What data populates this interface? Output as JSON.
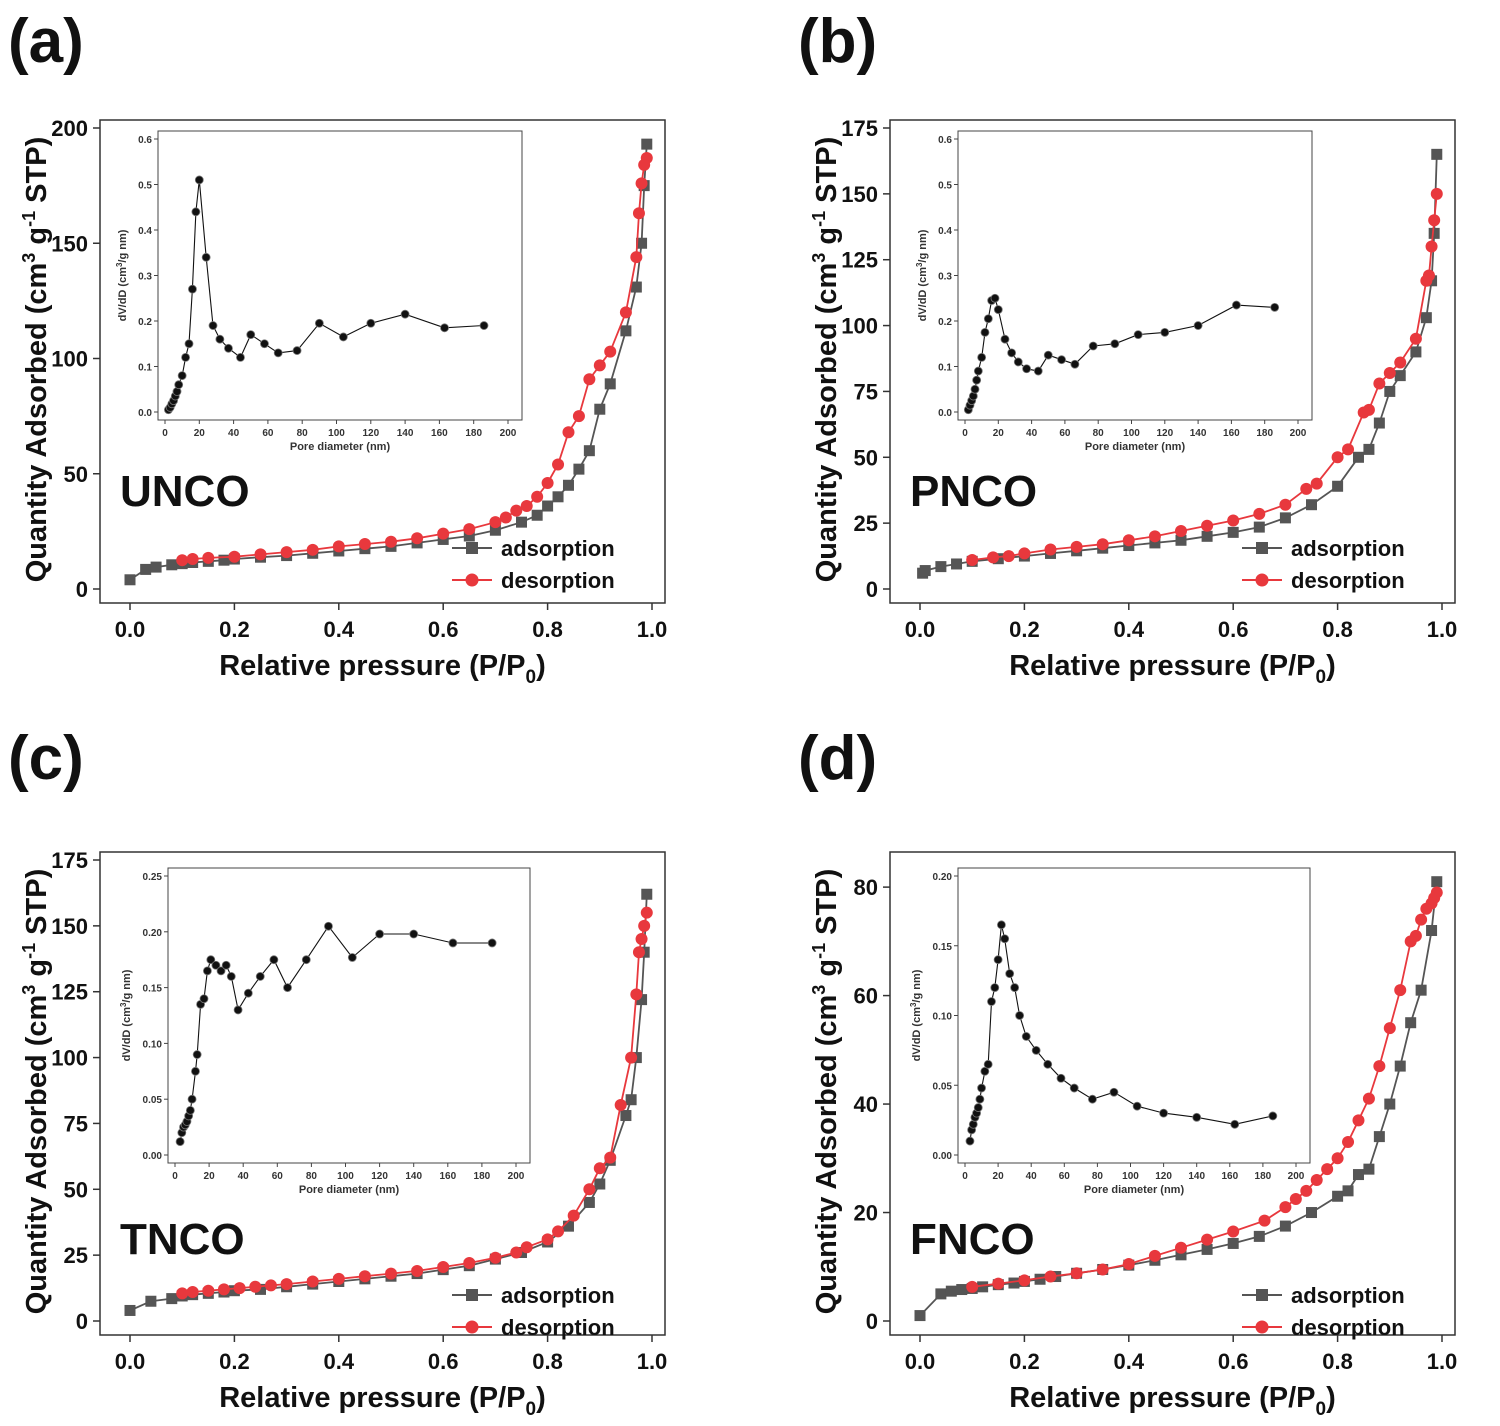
{
  "colors": {
    "adsorption": "#555555",
    "desorption": "#e8383d",
    "inset": "#111111",
    "axis": "#333333"
  },
  "common": {
    "xlabel": "Relative pressure (P/P",
    "xlabel_sub": "0",
    "xlabel_close": ")",
    "ylabel": "Quantity Adsorbed (cm",
    "ylabel_sup1": "3",
    "ylabel_mid": " g",
    "ylabel_sup2": "-1",
    "ylabel_end": " STP)",
    "inset_xlabel": "Pore diameter (nm)",
    "inset_ylabel": "dV/dD (cm",
    "inset_ylabel_sup": "3",
    "inset_ylabel_end": "/g nm)",
    "legend": [
      "adsorption",
      "desorption"
    ]
  },
  "chart_data": [
    {
      "type": "line",
      "panel": "(a)",
      "sample": "UNCO",
      "xlim": [
        0,
        1.0
      ],
      "ylim": [
        0,
        200
      ],
      "xticks": [
        "0.0",
        "0.2",
        "0.4",
        "0.6",
        "0.8",
        "1.0"
      ],
      "yticks": [
        "0",
        "50",
        "100",
        "150",
        "200"
      ],
      "legend_position": "bottom-right",
      "series": [
        {
          "name": "adsorption",
          "marker": "square",
          "x": [
            0.0,
            0.03,
            0.05,
            0.08,
            0.1,
            0.12,
            0.15,
            0.18,
            0.2,
            0.25,
            0.3,
            0.35,
            0.4,
            0.45,
            0.5,
            0.55,
            0.6,
            0.65,
            0.7,
            0.75,
            0.78,
            0.8,
            0.82,
            0.84,
            0.86,
            0.88,
            0.9,
            0.92,
            0.95,
            0.97,
            0.98,
            0.985,
            0.99
          ],
          "y": [
            4,
            8.5,
            9.5,
            10.5,
            11,
            11.5,
            12,
            12.5,
            13,
            13.8,
            14.5,
            15.5,
            16.5,
            17.5,
            18.5,
            20,
            21.5,
            23,
            25.5,
            29,
            32,
            36,
            40,
            45,
            52,
            60,
            78,
            89,
            112,
            131,
            150,
            175,
            193
          ]
        },
        {
          "name": "desorption",
          "marker": "circle",
          "x": [
            0.99,
            0.985,
            0.98,
            0.975,
            0.97,
            0.95,
            0.92,
            0.9,
            0.88,
            0.86,
            0.84,
            0.82,
            0.8,
            0.78,
            0.76,
            0.74,
            0.72,
            0.7,
            0.65,
            0.6,
            0.55,
            0.5,
            0.45,
            0.4,
            0.35,
            0.3,
            0.25,
            0.2,
            0.15,
            0.12,
            0.1
          ],
          "y": [
            187,
            184,
            176,
            163,
            144,
            120,
            103,
            97,
            91,
            75,
            68,
            54,
            46,
            40,
            36,
            34,
            31,
            29,
            26,
            24,
            22,
            20.5,
            19.5,
            18.5,
            17,
            16,
            15,
            14,
            13.5,
            13,
            12.5
          ]
        }
      ],
      "inset": {
        "xlim": [
          0,
          200
        ],
        "ylim": [
          0,
          0.6
        ],
        "xticks": [
          "0",
          "20",
          "40",
          "60",
          "80",
          "100",
          "120",
          "140",
          "160",
          "180",
          "200"
        ],
        "yticks": [
          "0.0",
          "0.1",
          "0.2",
          "0.3",
          "0.4",
          "0.5",
          "0.6"
        ],
        "x": [
          2,
          3,
          4,
          5,
          6,
          7,
          8,
          10,
          12,
          14,
          16,
          18,
          20,
          24,
          28,
          32,
          37,
          44,
          50,
          58,
          66,
          77,
          90,
          104,
          120,
          140,
          163,
          186
        ],
        "y": [
          0.005,
          0.01,
          0.018,
          0.025,
          0.035,
          0.045,
          0.06,
          0.08,
          0.12,
          0.15,
          0.27,
          0.44,
          0.51,
          0.34,
          0.19,
          0.16,
          0.14,
          0.12,
          0.17,
          0.15,
          0.13,
          0.135,
          0.195,
          0.165,
          0.195,
          0.215,
          0.185,
          0.19
        ]
      }
    },
    {
      "type": "line",
      "panel": "(b)",
      "sample": "PNCO",
      "xlim": [
        0,
        1.0
      ],
      "ylim": [
        0,
        175
      ],
      "xticks": [
        "0.0",
        "0.2",
        "0.4",
        "0.6",
        "0.8",
        "1.0"
      ],
      "yticks": [
        "0",
        "25",
        "50",
        "75",
        "100",
        "125",
        "150",
        "175"
      ],
      "legend_position": "bottom-right",
      "series": [
        {
          "name": "adsorption",
          "marker": "square",
          "x": [
            0.005,
            0.01,
            0.04,
            0.07,
            0.1,
            0.15,
            0.2,
            0.25,
            0.3,
            0.35,
            0.4,
            0.45,
            0.5,
            0.55,
            0.6,
            0.65,
            0.7,
            0.75,
            0.8,
            0.84,
            0.86,
            0.88,
            0.9,
            0.92,
            0.95,
            0.97,
            0.98,
            0.985,
            0.99
          ],
          "y": [
            6,
            7,
            8.5,
            9.5,
            10.5,
            11.5,
            12.5,
            13.5,
            14.5,
            15.5,
            16.5,
            17.5,
            18.5,
            20,
            21.5,
            23.5,
            27,
            32,
            39,
            50,
            53,
            63,
            75,
            81,
            90,
            103,
            117,
            135,
            165
          ]
        },
        {
          "name": "desorption",
          "marker": "circle",
          "x": [
            0.99,
            0.985,
            0.98,
            0.975,
            0.97,
            0.95,
            0.92,
            0.9,
            0.88,
            0.86,
            0.85,
            0.82,
            0.8,
            0.76,
            0.74,
            0.7,
            0.65,
            0.6,
            0.55,
            0.5,
            0.45,
            0.4,
            0.35,
            0.3,
            0.25,
            0.2,
            0.17,
            0.14,
            0.1
          ],
          "y": [
            150,
            140,
            130,
            119,
            117,
            95,
            86,
            82,
            78,
            68,
            67,
            53,
            50,
            40,
            38,
            32,
            28.5,
            26,
            24,
            22,
            20,
            18.5,
            17,
            16,
            15,
            13.5,
            12.5,
            12,
            11
          ]
        }
      ],
      "inset": {
        "xlim": [
          0,
          200
        ],
        "ylim": [
          0,
          0.6
        ],
        "xticks": [
          "0",
          "20",
          "40",
          "60",
          "80",
          "100",
          "120",
          "140",
          "160",
          "180",
          "200"
        ],
        "yticks": [
          "0.0",
          "0.1",
          "0.2",
          "0.3",
          "0.4",
          "0.5",
          "0.6"
        ],
        "x": [
          2,
          3,
          4,
          5,
          6,
          7,
          8,
          10,
          12,
          14,
          16,
          18,
          20,
          24,
          28,
          32,
          37,
          44,
          50,
          58,
          66,
          77,
          90,
          104,
          120,
          140,
          163,
          186
        ],
        "y": [
          0.005,
          0.015,
          0.025,
          0.035,
          0.05,
          0.07,
          0.09,
          0.12,
          0.175,
          0.205,
          0.245,
          0.25,
          0.225,
          0.16,
          0.13,
          0.11,
          0.095,
          0.09,
          0.125,
          0.115,
          0.105,
          0.145,
          0.15,
          0.17,
          0.175,
          0.19,
          0.235,
          0.23
        ]
      }
    },
    {
      "type": "line",
      "panel": "(c)",
      "sample": "TNCO",
      "xlim": [
        0,
        1.0
      ],
      "ylim": [
        0,
        175
      ],
      "xticks": [
        "0.0",
        "0.2",
        "0.4",
        "0.6",
        "0.8",
        "1.0"
      ],
      "yticks": [
        "0",
        "25",
        "50",
        "75",
        "100",
        "125",
        "150",
        "175"
      ],
      "legend_position": "bottom-right",
      "series": [
        {
          "name": "adsorption",
          "marker": "square",
          "x": [
            0.0,
            0.04,
            0.08,
            0.1,
            0.12,
            0.15,
            0.18,
            0.2,
            0.25,
            0.3,
            0.35,
            0.4,
            0.45,
            0.5,
            0.55,
            0.6,
            0.65,
            0.7,
            0.75,
            0.8,
            0.84,
            0.88,
            0.9,
            0.92,
            0.95,
            0.96,
            0.97,
            0.98,
            0.985,
            0.99
          ],
          "y": [
            4,
            7.5,
            8.5,
            9.5,
            10,
            10.5,
            11,
            11.5,
            12,
            13,
            14,
            15,
            16,
            17,
            18,
            19.5,
            21,
            23.5,
            26,
            30,
            36,
            45,
            52,
            61,
            78,
            84,
            100,
            122,
            140,
            162
          ]
        },
        {
          "name": "desorption",
          "marker": "circle",
          "x": [
            0.99,
            0.985,
            0.98,
            0.975,
            0.97,
            0.96,
            0.94,
            0.92,
            0.9,
            0.88,
            0.85,
            0.82,
            0.8,
            0.76,
            0.74,
            0.7,
            0.65,
            0.6,
            0.55,
            0.5,
            0.45,
            0.4,
            0.35,
            0.3,
            0.27,
            0.24,
            0.21,
            0.18,
            0.15,
            0.12,
            0.1
          ],
          "y": [
            155,
            150,
            145,
            140,
            124,
            100,
            82,
            62,
            58,
            50,
            40,
            34,
            31,
            28,
            26,
            24,
            22,
            20.5,
            19,
            18,
            17,
            16,
            15,
            14,
            13.5,
            13,
            12.5,
            12,
            11.5,
            11,
            10.5
          ]
        }
      ],
      "inset": {
        "xlim": [
          0,
          200
        ],
        "ylim": [
          0,
          0.25
        ],
        "xticks": [
          "0",
          "20",
          "40",
          "60",
          "80",
          "100",
          "120",
          "140",
          "160",
          "180",
          "200"
        ],
        "yticks": [
          "0.00",
          "0.05",
          "0.10",
          "0.15",
          "0.20",
          "0.25"
        ],
        "x": [
          3,
          4,
          5,
          6,
          7,
          8,
          9,
          10,
          12,
          13,
          15,
          17,
          19,
          21,
          24,
          27,
          30,
          33,
          37,
          43,
          50,
          58,
          66,
          77,
          90,
          104,
          120,
          140,
          163,
          186
        ],
        "y": [
          0.012,
          0.02,
          0.025,
          0.027,
          0.03,
          0.035,
          0.04,
          0.05,
          0.075,
          0.09,
          0.135,
          0.14,
          0.165,
          0.175,
          0.17,
          0.165,
          0.17,
          0.16,
          0.13,
          0.145,
          0.16,
          0.175,
          0.15,
          0.175,
          0.205,
          0.177,
          0.198,
          0.198,
          0.19,
          0.19
        ]
      }
    },
    {
      "type": "line",
      "panel": "(d)",
      "sample": "FNCO",
      "xlim": [
        0,
        1.0
      ],
      "ylim": [
        0,
        85
      ],
      "xticks": [
        "0.0",
        "0.2",
        "0.4",
        "0.6",
        "0.8",
        "1.0"
      ],
      "yticks": [
        "0",
        "20",
        "40",
        "60",
        "80"
      ],
      "legend_position": "bottom-right",
      "series": [
        {
          "name": "adsorption",
          "marker": "square",
          "x": [
            0.0,
            0.04,
            0.06,
            0.08,
            0.1,
            0.12,
            0.15,
            0.18,
            0.2,
            0.23,
            0.26,
            0.3,
            0.35,
            0.4,
            0.45,
            0.5,
            0.55,
            0.6,
            0.65,
            0.7,
            0.75,
            0.8,
            0.82,
            0.84,
            0.86,
            0.88,
            0.9,
            0.92,
            0.94,
            0.96,
            0.98,
            0.99
          ],
          "y": [
            1,
            5,
            5.5,
            5.8,
            6,
            6.3,
            6.7,
            7,
            7.3,
            7.7,
            8.2,
            8.8,
            9.5,
            10.3,
            11.2,
            12.2,
            13.2,
            14.3,
            15.6,
            17.5,
            20,
            23,
            24,
            27,
            28,
            34,
            40,
            47,
            55,
            61,
            72,
            81
          ]
        },
        {
          "name": "desorption",
          "marker": "circle",
          "x": [
            0.99,
            0.985,
            0.98,
            0.97,
            0.96,
            0.95,
            0.94,
            0.92,
            0.9,
            0.88,
            0.86,
            0.84,
            0.82,
            0.8,
            0.78,
            0.76,
            0.74,
            0.72,
            0.7,
            0.66,
            0.6,
            0.55,
            0.5,
            0.45,
            0.4,
            0.35,
            0.3,
            0.25,
            0.2,
            0.15,
            0.1
          ],
          "y": [
            79,
            78,
            77,
            76,
            74,
            71,
            70,
            61,
            54,
            47,
            41,
            37,
            33,
            30,
            28,
            26,
            24,
            22.5,
            21,
            18.5,
            16.5,
            15,
            13.5,
            12,
            10.5,
            9.5,
            8.8,
            8.2,
            7.5,
            6.9,
            6.3
          ]
        }
      ],
      "inset": {
        "xlim": [
          0,
          200
        ],
        "ylim": [
          0,
          0.2
        ],
        "xticks": [
          "0",
          "20",
          "40",
          "60",
          "80",
          "100",
          "120",
          "140",
          "160",
          "180",
          "200"
        ],
        "yticks": [
          "0.00",
          "0.05",
          "0.10",
          "0.15",
          "0.20"
        ],
        "x": [
          3,
          4,
          5,
          6,
          7,
          8,
          9,
          10,
          12,
          14,
          16,
          18,
          20,
          22,
          24,
          27,
          30,
          33,
          37,
          43,
          50,
          58,
          66,
          77,
          90,
          104,
          120,
          140,
          163,
          186
        ],
        "y": [
          0.01,
          0.018,
          0.022,
          0.027,
          0.03,
          0.034,
          0.04,
          0.048,
          0.06,
          0.065,
          0.11,
          0.12,
          0.14,
          0.165,
          0.155,
          0.13,
          0.12,
          0.1,
          0.085,
          0.075,
          0.065,
          0.055,
          0.048,
          0.04,
          0.045,
          0.035,
          0.03,
          0.027,
          0.022,
          0.028
        ]
      }
    }
  ]
}
